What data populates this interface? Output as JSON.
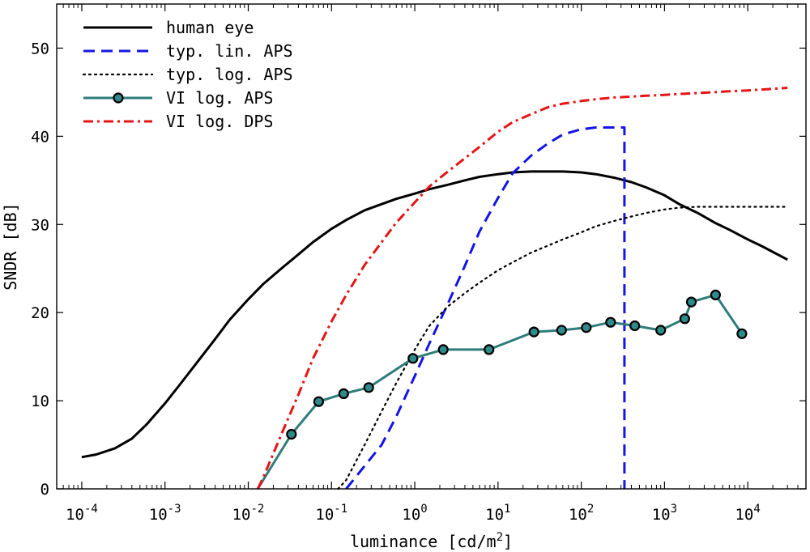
{
  "chart_data": {
    "type": "line",
    "xlabel": "luminance [cd/m",
    "xlabel_sup": "2",
    "xlabel_end": "]",
    "ylabel": "SNDR [dB]",
    "xscale": "log",
    "xlim": [
      5e-05,
      50000
    ],
    "ylim": [
      0,
      55
    ],
    "xticks": [
      {
        "value": 0.0001,
        "base": "10",
        "exp": "-4"
      },
      {
        "value": 0.001,
        "base": "10",
        "exp": "-3"
      },
      {
        "value": 0.01,
        "base": "10",
        "exp": "-2"
      },
      {
        "value": 0.1,
        "base": "10",
        "exp": "-1"
      },
      {
        "value": 1,
        "base": "10",
        "exp": "0"
      },
      {
        "value": 10,
        "base": "10",
        "exp": "1"
      },
      {
        "value": 100,
        "base": "10",
        "exp": "2"
      },
      {
        "value": 1000,
        "base": "10",
        "exp": "3"
      },
      {
        "value": 10000,
        "base": "10",
        "exp": "4"
      }
    ],
    "yticks": [
      "0",
      "10",
      "20",
      "30",
      "40",
      "50"
    ],
    "grid": false,
    "legend_position": "top-left",
    "series": [
      {
        "name": "human eye",
        "color": "#000000",
        "style": "solid",
        "x": [
          0.0001,
          0.00015,
          0.00025,
          0.0004,
          0.0006,
          0.001,
          0.0015,
          0.0025,
          0.004,
          0.006,
          0.01,
          0.015,
          0.025,
          0.04,
          0.06,
          0.1,
          0.15,
          0.25,
          0.4,
          0.6,
          1,
          1.5,
          2.5,
          4,
          6,
          10,
          15,
          25,
          40,
          60,
          100,
          150,
          250,
          400,
          600,
          1000,
          1500,
          2500,
          4000,
          6000,
          10000,
          15000,
          30000
        ],
        "y": [
          3.6,
          3.9,
          4.6,
          5.7,
          7.3,
          9.7,
          11.8,
          14.5,
          17.0,
          19.2,
          21.5,
          23.2,
          25.0,
          26.6,
          28.0,
          29.5,
          30.5,
          31.6,
          32.3,
          32.9,
          33.5,
          34.0,
          34.5,
          35.0,
          35.4,
          35.7,
          35.9,
          36.0,
          36.0,
          36.0,
          35.9,
          35.7,
          35.3,
          34.8,
          34.2,
          33.3,
          32.3,
          31.3,
          30.2,
          29.4,
          28.3,
          27.5,
          26.0
        ]
      },
      {
        "name": "typ. lin. APS",
        "color": "#1414e6",
        "style": "dashed",
        "x": [
          0.15,
          0.25,
          0.4,
          0.6,
          1,
          1.5,
          2.5,
          4,
          6,
          10,
          15,
          25,
          40,
          60,
          100,
          150,
          250,
          330,
          330
        ],
        "y": [
          0,
          2.6,
          5.0,
          8.2,
          12.8,
          16.5,
          21.0,
          25.3,
          29.2,
          33.0,
          35.8,
          37.8,
          39.2,
          40.2,
          40.8,
          41.0,
          41.0,
          41.0,
          0
        ]
      },
      {
        "name": "typ. log. APS",
        "color": "#000000",
        "style": "dotted",
        "x": [
          0.12,
          0.15,
          0.25,
          0.4,
          0.6,
          1,
          1.5,
          2.5,
          4,
          6,
          10,
          15,
          25,
          40,
          60,
          100,
          150,
          250,
          400,
          600,
          1000,
          1500,
          2500,
          4000,
          6000,
          10000,
          15000,
          30000
        ],
        "y": [
          0,
          1.0,
          5.0,
          8.8,
          12.0,
          15.8,
          18.5,
          20.7,
          22.2,
          23.4,
          24.8,
          25.7,
          26.8,
          27.6,
          28.3,
          29.1,
          29.8,
          30.4,
          30.9,
          31.3,
          31.7,
          31.9,
          32.0,
          32.0,
          32.0,
          32.0,
          32.0,
          32.0
        ]
      },
      {
        "name": "VI log. APS",
        "color": "#2e7d7a",
        "marker_fill": "#2e8b8b",
        "style": "solid-markers",
        "line_start": [
          0.013,
          0
        ],
        "x": [
          0.033,
          0.07,
          0.14,
          0.28,
          0.95,
          2.2,
          7.8,
          27,
          58,
          115,
          225,
          440,
          900,
          1750,
          2100,
          4100,
          8500
        ],
        "y": [
          6.2,
          9.9,
          10.8,
          11.5,
          14.8,
          15.8,
          15.8,
          17.8,
          18.0,
          18.3,
          18.9,
          18.5,
          18.0,
          19.3,
          21.2,
          22.0,
          17.6
        ]
      },
      {
        "name": "VI log. DPS",
        "color": "#e61414",
        "style": "dashdot",
        "x": [
          0.013,
          0.015,
          0.025,
          0.04,
          0.06,
          0.1,
          0.15,
          0.25,
          0.4,
          0.6,
          1,
          1.5,
          2.5,
          4,
          6,
          10,
          15,
          25,
          40,
          60,
          100,
          150,
          250,
          400,
          600,
          1000,
          1500,
          2500,
          4000,
          6000,
          10000,
          15000,
          30000
        ],
        "y": [
          0,
          1.2,
          6.2,
          10.7,
          14.8,
          19.0,
          22.0,
          25.4,
          28.0,
          30.2,
          32.5,
          34.3,
          36.0,
          37.5,
          38.8,
          40.5,
          41.6,
          42.5,
          43.3,
          43.7,
          44.0,
          44.2,
          44.4,
          44.5,
          44.6,
          44.7,
          44.8,
          44.9,
          45.0,
          45.1,
          45.2,
          45.3,
          45.5
        ]
      }
    ]
  }
}
